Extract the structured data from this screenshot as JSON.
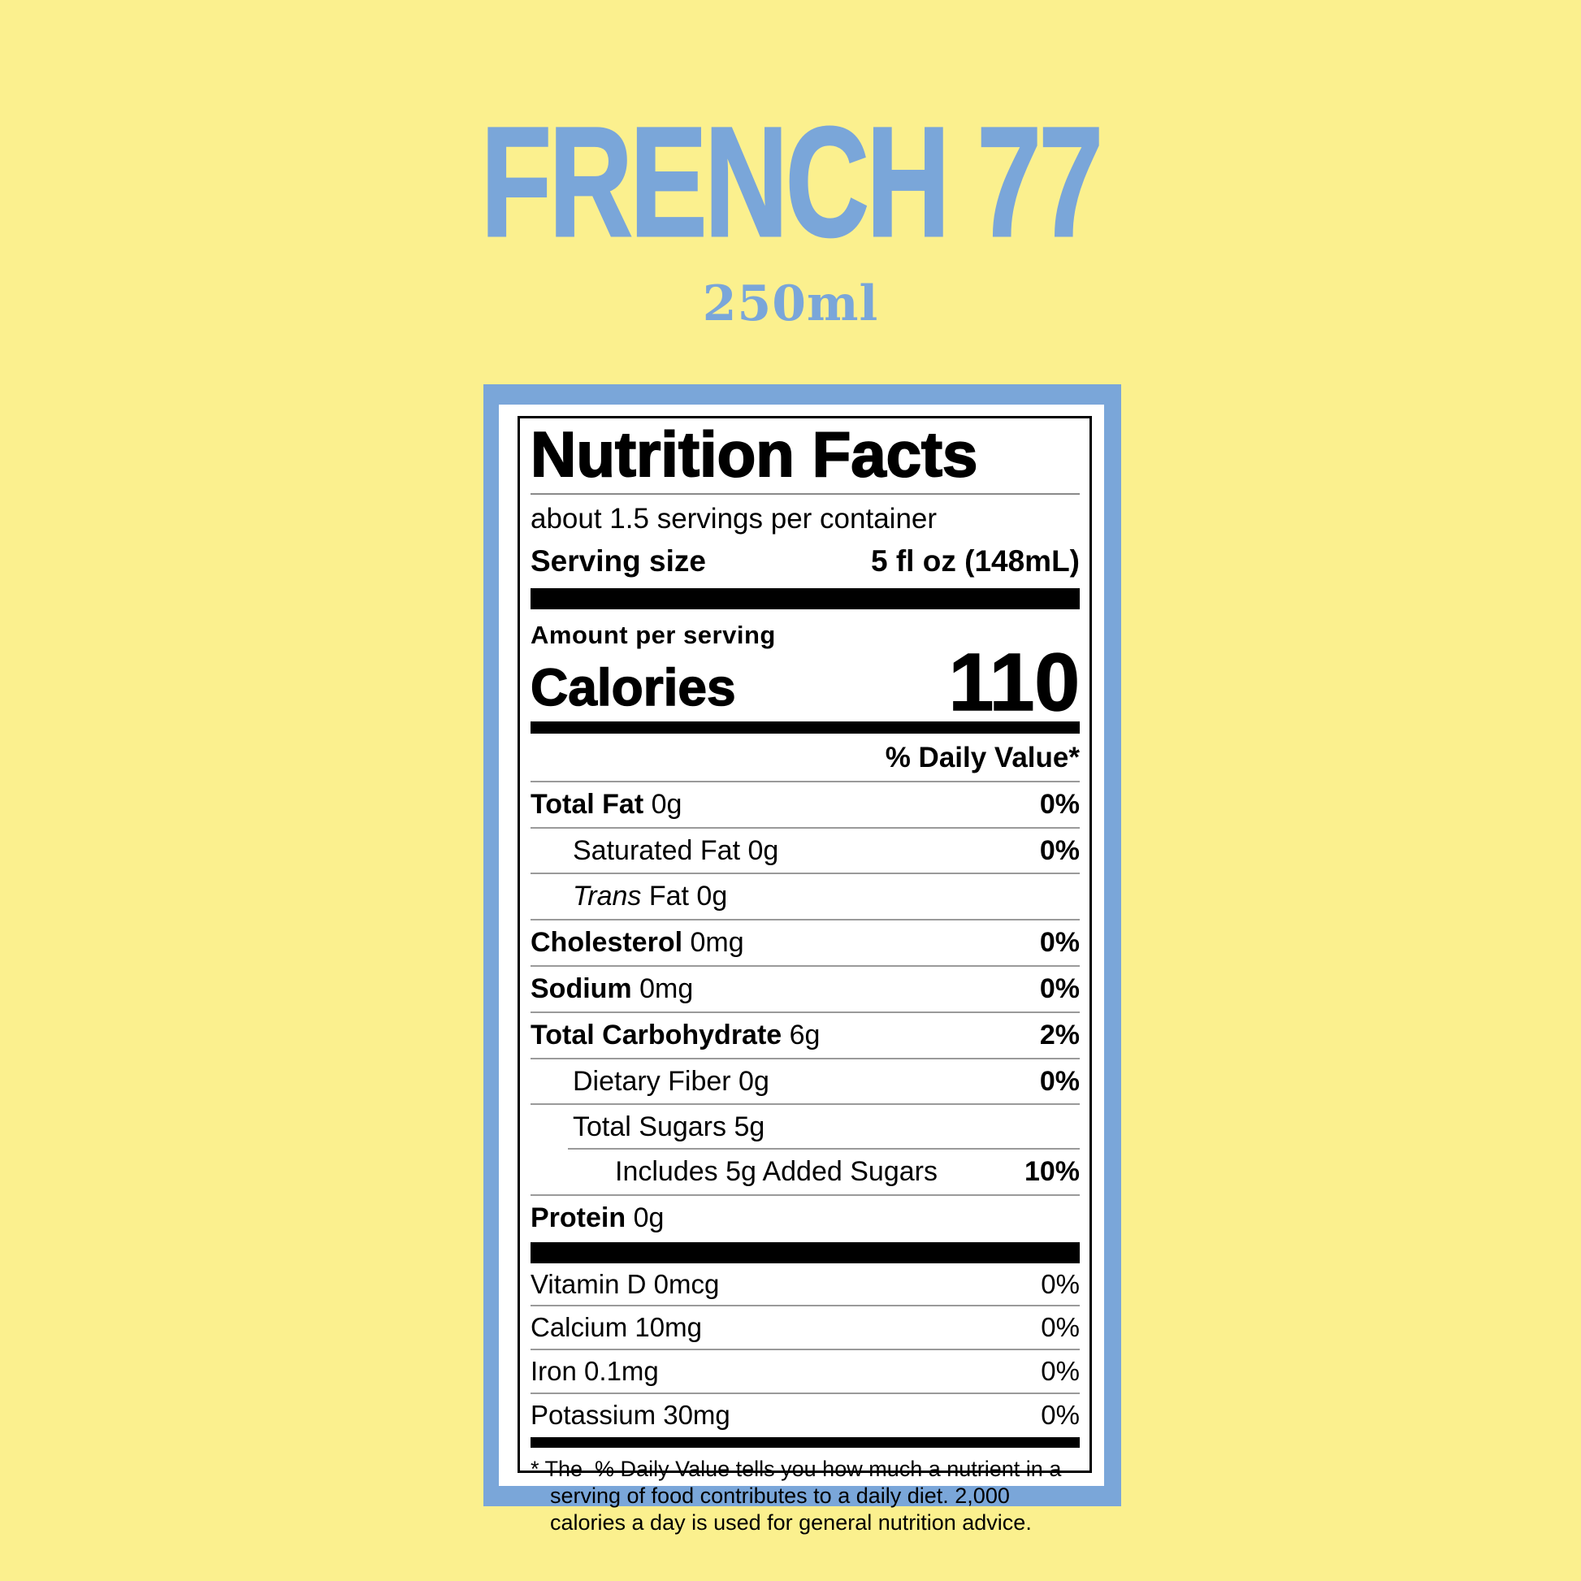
{
  "page": {
    "background_color": "#FBF08E",
    "accent_blue": "#7AA6D9"
  },
  "header": {
    "title": "FRENCH 77",
    "volume": "250ml"
  },
  "label": {
    "title": "Nutrition Facts",
    "servings_per_container": "about 1.5 servings per container",
    "serving_size_label": "Serving size",
    "serving_size_value": "5 fl oz (148mL)",
    "amount_per_serving": "Amount per serving",
    "calories_label": "Calories",
    "calories_value": "110",
    "daily_value_header": "% Daily Value*",
    "nutrients": [
      {
        "name": "Total Fat",
        "amount": "0g",
        "dv": "0%",
        "bold": true,
        "indent": 0
      },
      {
        "name": "Saturated Fat",
        "amount": "0g",
        "dv": "0%",
        "indent": 1
      },
      {
        "italic_prefix": "Trans",
        "name": " Fat",
        "amount": "0g",
        "dv": "",
        "indent": 1
      },
      {
        "name": "Cholesterol",
        "amount": "0mg",
        "dv": "0%",
        "bold": true,
        "indent": 0
      },
      {
        "name": "Sodium",
        "amount": "0mg",
        "dv": "0%",
        "bold": true,
        "indent": 0
      },
      {
        "name": "Total Carbohydrate",
        "amount": "6g",
        "dv": "2%",
        "bold": true,
        "indent": 0
      },
      {
        "name": "Dietary Fiber",
        "amount": "0g",
        "dv": "0%",
        "indent": 1
      },
      {
        "name": "Total Sugars",
        "amount": "5g",
        "dv": "",
        "indent": 1
      },
      {
        "name": "Includes 5g Added Sugars",
        "amount": "",
        "dv": "10%",
        "indent": 2,
        "rule_indent": true
      },
      {
        "name": "Protein",
        "amount": "0g",
        "dv": "",
        "bold": true,
        "indent": 0
      }
    ],
    "micronutrients": [
      {
        "name": "Vitamin D",
        "amount": "0mcg",
        "dv": "0%"
      },
      {
        "name": "Calcium",
        "amount": "10mg",
        "dv": "0%"
      },
      {
        "name": "Iron",
        "amount": "0.1mg",
        "dv": "0%"
      },
      {
        "name": "Potassium",
        "amount": "30mg",
        "dv": "0%"
      }
    ],
    "footnote": "* The  % Daily Value tells you how much a nutrient in a serving of food contributes to a daily diet. 2,000 calories a day is used for general nutrition advice."
  }
}
